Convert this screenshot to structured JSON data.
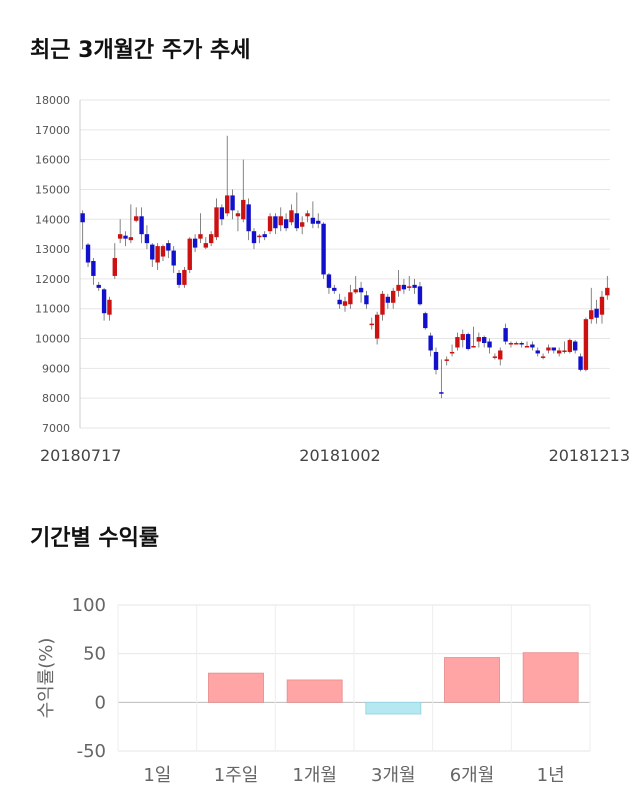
{
  "sections": {
    "price_title": "최근 3개월간 주가 추세",
    "return_title": "기간별 수익률"
  },
  "chart_data": [
    {
      "type": "candlestick",
      "title": "최근 3개월간 주가 추세",
      "ylim": [
        7000,
        18000
      ],
      "yticks": [
        7000,
        8000,
        9000,
        10000,
        11000,
        12000,
        13000,
        14000,
        15000,
        16000,
        17000,
        18000
      ],
      "date_labels": [
        "20180717",
        "20181002",
        "20181213"
      ],
      "up_color": "#cc1111",
      "down_color": "#1111cc",
      "candles": [
        [
          14200,
          13900,
          14300,
          13000
        ],
        [
          13150,
          12550,
          13200,
          12400
        ],
        [
          12600,
          12100,
          12700,
          11800
        ],
        [
          11800,
          11700,
          11900,
          11600
        ],
        [
          11650,
          10850,
          11700,
          10600
        ],
        [
          10800,
          11300,
          11400,
          10600
        ],
        [
          12100,
          12700,
          13200,
          12000
        ],
        [
          13350,
          13500,
          14000,
          13200
        ],
        [
          13450,
          13350,
          13600,
          13100
        ],
        [
          13300,
          13400,
          14500,
          13200
        ],
        [
          13950,
          14100,
          14400,
          13900
        ],
        [
          14100,
          13500,
          14400,
          13200
        ],
        [
          13500,
          13200,
          13800,
          13000
        ],
        [
          13150,
          12650,
          13200,
          12400
        ],
        [
          12550,
          13100,
          13200,
          12300
        ],
        [
          12750,
          13100,
          13150,
          12600
        ],
        [
          13200,
          12950,
          13300,
          12700
        ],
        [
          12950,
          12450,
          13100,
          12200
        ],
        [
          12200,
          11800,
          12300,
          11700
        ],
        [
          11800,
          12300,
          12400,
          11700
        ],
        [
          12300,
          13350,
          13400,
          12200
        ],
        [
          13350,
          13050,
          13500,
          12900
        ],
        [
          13350,
          13500,
          14200,
          13200
        ],
        [
          13050,
          13200,
          13400,
          13000
        ],
        [
          13200,
          13500,
          13600,
          13100
        ],
        [
          13400,
          14400,
          14700,
          13300
        ],
        [
          14400,
          14000,
          14500,
          13800
        ],
        [
          14200,
          14800,
          16800,
          14100
        ],
        [
          14800,
          14300,
          15000,
          14000
        ],
        [
          14100,
          14200,
          14300,
          13600
        ],
        [
          14000,
          14650,
          16000,
          13900
        ],
        [
          14500,
          13600,
          14700,
          13300
        ],
        [
          13600,
          13200,
          13700,
          13000
        ],
        [
          13450,
          13450,
          13500,
          13200
        ],
        [
          13500,
          13400,
          13600,
          13300
        ],
        [
          13600,
          14100,
          14200,
          13500
        ],
        [
          14100,
          13700,
          14200,
          13500
        ],
        [
          13800,
          14100,
          14400,
          13600
        ],
        [
          14000,
          13700,
          14200,
          13600
        ],
        [
          13900,
          14300,
          14500,
          13800
        ],
        [
          14200,
          13700,
          14900,
          13600
        ],
        [
          13750,
          13900,
          14100,
          13500
        ],
        [
          14100,
          14200,
          14300,
          13900
        ],
        [
          14050,
          13850,
          14600,
          13700
        ],
        [
          13950,
          13850,
          14200,
          13700
        ],
        [
          13850,
          12150,
          13900,
          12000
        ],
        [
          12150,
          11700,
          12200,
          11500
        ],
        [
          11700,
          11600,
          11800,
          11500
        ],
        [
          11300,
          11150,
          11500,
          11000
        ],
        [
          11100,
          11250,
          11400,
          10900
        ],
        [
          11150,
          11550,
          11800,
          11000
        ],
        [
          11550,
          11650,
          12100,
          11500
        ],
        [
          11700,
          11550,
          11900,
          11200
        ],
        [
          11450,
          11150,
          11600,
          11000
        ],
        [
          10500,
          10500,
          10700,
          10300
        ],
        [
          10000,
          10800,
          10900,
          9800
        ],
        [
          10800,
          11500,
          11600,
          10600
        ],
        [
          11400,
          11200,
          11500,
          11000
        ],
        [
          11200,
          11600,
          11700,
          11000
        ],
        [
          11600,
          11800,
          12300,
          11400
        ],
        [
          11800,
          11650,
          12000,
          11500
        ],
        [
          11750,
          11750,
          12100,
          11600
        ],
        [
          11800,
          11700,
          12000,
          11500
        ],
        [
          11750,
          11150,
          11900,
          11100
        ],
        [
          10850,
          10350,
          10900,
          10300
        ],
        [
          10100,
          9600,
          10200,
          9400
        ],
        [
          9550,
          8950,
          9700,
          8800
        ],
        [
          8200,
          8150,
          9300,
          8000
        ],
        [
          9300,
          9300,
          9400,
          9100
        ],
        [
          9550,
          9550,
          9800,
          9400
        ],
        [
          9700,
          10050,
          10200,
          9600
        ],
        [
          9950,
          10150,
          10300,
          9700
        ],
        [
          10150,
          9650,
          10200,
          9600
        ],
        [
          9750,
          9750,
          10400,
          9700
        ],
        [
          9900,
          10050,
          10200,
          9700
        ],
        [
          10050,
          9850,
          10100,
          9700
        ],
        [
          9900,
          9700,
          10000,
          9500
        ],
        [
          9400,
          9400,
          9500,
          9300
        ],
        [
          9300,
          9600,
          9700,
          9100
        ],
        [
          10350,
          9900,
          10500,
          9800
        ],
        [
          9850,
          9850,
          9900,
          9700
        ],
        [
          9850,
          9850,
          9900,
          9800
        ],
        [
          9850,
          9800,
          9900,
          9700
        ],
        [
          9750,
          9750,
          9900,
          9700
        ],
        [
          9800,
          9700,
          9900,
          9600
        ],
        [
          9600,
          9500,
          9700,
          9400
        ],
        [
          9400,
          9400,
          9500,
          9300
        ],
        [
          9600,
          9700,
          9800,
          9500
        ],
        [
          9700,
          9600,
          9700,
          9500
        ],
        [
          9500,
          9600,
          9700,
          9400
        ],
        [
          9550,
          9600,
          9900,
          9500
        ],
        [
          9550,
          9950,
          10000,
          9500
        ],
        [
          9900,
          9600,
          9950,
          9500
        ],
        [
          9400,
          8950,
          9500,
          8900
        ],
        [
          8950,
          10650,
          10700,
          8900
        ],
        [
          10650,
          10950,
          11700,
          10500
        ],
        [
          11000,
          10700,
          11300,
          10500
        ],
        [
          10800,
          11400,
          11600,
          10500
        ],
        [
          11450,
          11700,
          12100,
          11300
        ]
      ]
    },
    {
      "type": "bar",
      "title": "기간별 수익률",
      "ylabel": "수익률(%)",
      "ylim": [
        -50,
        100
      ],
      "yticks": [
        100,
        50,
        0,
        -50
      ],
      "categories": [
        "1일",
        "1주일",
        "1개월",
        "3개월",
        "6개월",
        "1년"
      ],
      "values": [
        0,
        30,
        23,
        -12,
        46,
        51
      ],
      "positive_color": "#ffa5a5",
      "negative_color": "#b5e8f0"
    }
  ]
}
